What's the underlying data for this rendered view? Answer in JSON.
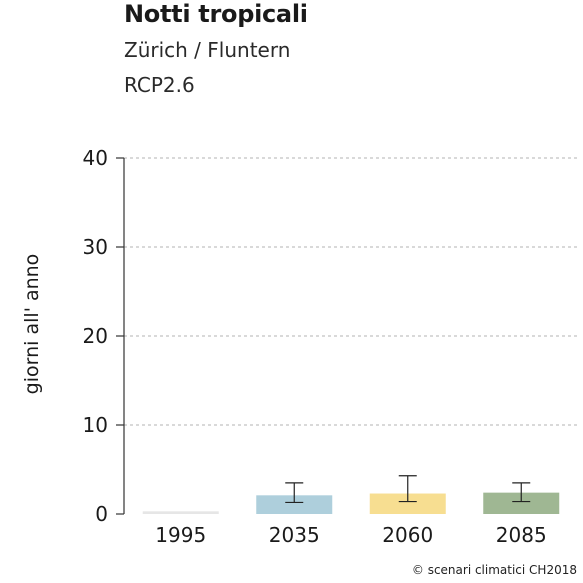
{
  "header": {
    "title": "Notti tropicali",
    "location": "Zürich / Fluntern",
    "scenario": "RCP2.6"
  },
  "credit": "© scenari climatici CH2018",
  "chart_data": {
    "type": "bar",
    "ylabel": "giorni all' anno",
    "ylim": [
      0,
      40
    ],
    "yticks": [
      0,
      10,
      20,
      30,
      40
    ],
    "grid": true,
    "categories": [
      "1995",
      "2035",
      "2060",
      "2085"
    ],
    "values": [
      0.3,
      2.1,
      2.3,
      2.4
    ],
    "errors_low": [
      null,
      1.3,
      1.4,
      1.4
    ],
    "errors_high": [
      null,
      3.5,
      4.3,
      3.5
    ],
    "colors": [
      "#e6e6e6",
      "#aecfdc",
      "#f7de91",
      "#9fb793"
    ]
  }
}
